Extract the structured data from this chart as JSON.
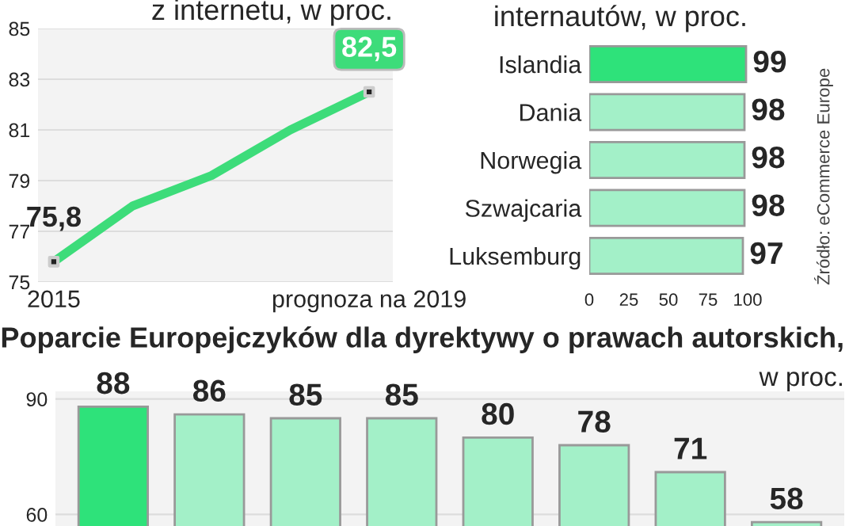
{
  "chart_data": [
    {
      "type": "line",
      "title": "z internetu, w proc.",
      "categories": [
        "2015",
        null,
        null,
        null,
        "prognoza na 2019"
      ],
      "ylim": [
        75,
        85
      ],
      "yticks": [
        75,
        77,
        79,
        81,
        83,
        85
      ],
      "grid": "y",
      "series": [
        {
          "type": "line",
          "color": "#3ddc7a",
          "values": [
            75.8,
            78.0,
            79.2,
            81.0,
            82.5
          ],
          "value_labels": [
            "75,8",
            null,
            null,
            null,
            "82,5"
          ]
        }
      ]
    },
    {
      "type": "bar",
      "orientation": "horizontal",
      "title": "internautów, w proc.",
      "categories": [
        "Islandia",
        "Dania",
        "Norwegia",
        "Szwajcaria",
        "Luksemburg"
      ],
      "values": [
        99,
        98,
        98,
        98,
        97
      ],
      "colors": [
        "#2ee27a",
        "#a3f0c8",
        "#a3f0c8",
        "#a3f0c8",
        "#a3f0c8"
      ],
      "xlim": [
        0,
        100
      ],
      "xticks": [
        0,
        25,
        50,
        75,
        100
      ],
      "data_labels": true,
      "annotations": [
        "Źródło: eCommerce Europe"
      ]
    },
    {
      "type": "bar",
      "title": "Poparcie Europejczyków dla dyrektywy o prawach autorskich,",
      "subtitle": "w proc.",
      "categories": [
        null,
        null,
        null,
        null,
        null,
        null,
        null,
        null
      ],
      "values": [
        88,
        86,
        85,
        85,
        80,
        78,
        71,
        58
      ],
      "colors": [
        "#2ee27a",
        "#a3f0c8",
        "#a3f0c8",
        "#a3f0c8",
        "#a3f0c8",
        "#a3f0c8",
        "#a3f0c8",
        "#a3f0c8"
      ],
      "ylim": [
        57,
        92
      ],
      "yticks": [
        60,
        90
      ],
      "grid": "y",
      "data_labels": true
    }
  ]
}
